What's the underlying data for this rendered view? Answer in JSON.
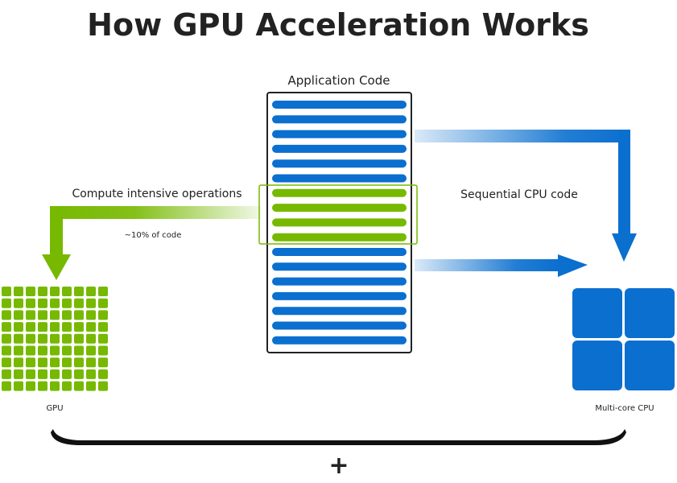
{
  "title": "How GPU Acceleration Works",
  "app_code_label": "Application Code",
  "compute_label": "Compute intensive operations",
  "percent_label": "~10% of code",
  "sequential_label": "Sequential CPU code",
  "gpu_label": "GPU",
  "cpu_label": "Multi-core CPU",
  "plus_label": "+",
  "code_lines": [
    "cpu",
    "cpu",
    "cpu",
    "cpu",
    "cpu",
    "cpu",
    "gpu",
    "gpu",
    "gpu",
    "gpu",
    "cpu",
    "cpu",
    "cpu",
    "cpu",
    "cpu",
    "cpu",
    "cpu"
  ],
  "gpu_grid": {
    "rows": 9,
    "cols": 9
  },
  "cpu_cores": 4,
  "colors": {
    "gpu": "#76b900",
    "cpu": "#0a6fcf",
    "text": "#222222"
  }
}
